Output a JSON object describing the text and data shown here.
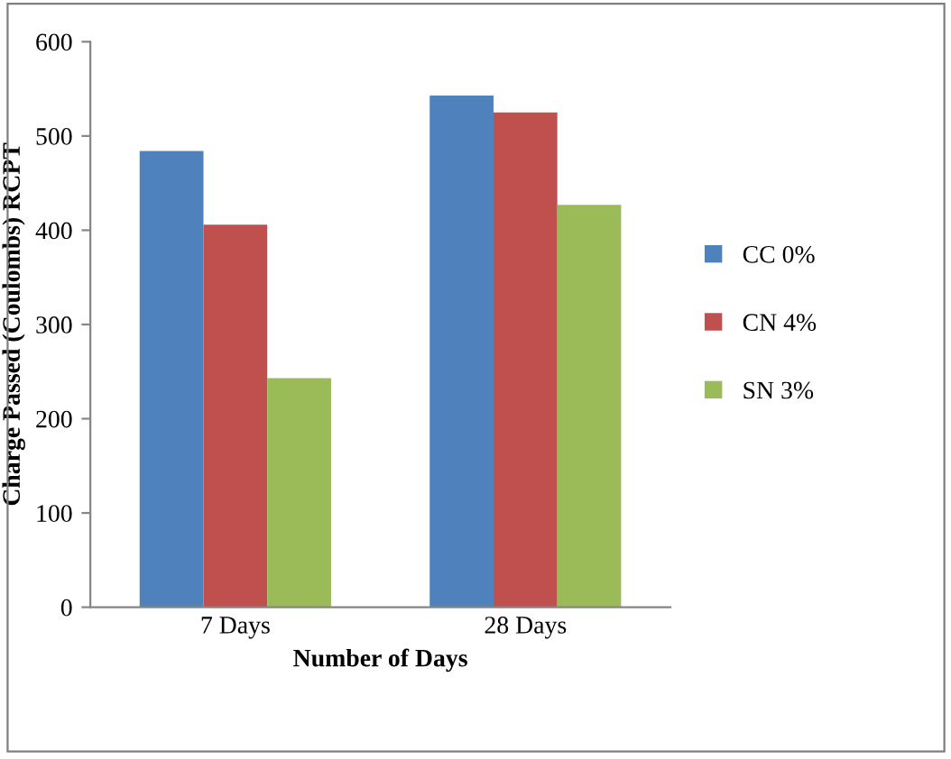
{
  "chart_data": {
    "type": "bar",
    "xlabel": "Number of Days",
    "ylabel": "Charge Passed (Coulombs) RCPT",
    "categories": [
      "7 Days",
      "28 Days"
    ],
    "series": [
      {
        "name": "CC 0%",
        "color": "#4f81bd",
        "values": [
          484,
          543
        ]
      },
      {
        "name": "CN 4%",
        "color": "#c0504d",
        "values": [
          406,
          525
        ]
      },
      {
        "name": "SN 3%",
        "color": "#9bbb59",
        "values": [
          243,
          427
        ]
      }
    ],
    "ylim": [
      0,
      600
    ],
    "yticks": [
      0,
      100,
      200,
      300,
      400,
      500,
      600
    ],
    "grid": false,
    "legend": "right"
  }
}
